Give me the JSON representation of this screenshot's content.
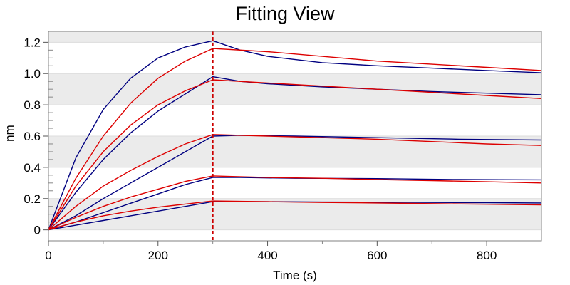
{
  "chart_data": {
    "type": "line",
    "title": "Fitting View",
    "xlabel": "Time (s)",
    "ylabel": "nm",
    "xlim": [
      0,
      900
    ],
    "ylim": [
      -0.07,
      1.27
    ],
    "xticks": [
      0,
      200,
      400,
      600,
      800
    ],
    "yticks": [
      0,
      0.2,
      0.4,
      0.6,
      0.8,
      1.0,
      1.2
    ],
    "ytick_labels": [
      "0",
      "0.2",
      "0.4",
      "0.6",
      "0.8",
      "1.0",
      "1.2"
    ],
    "grid": true,
    "legend": "none",
    "association_end_marker": {
      "x": 300,
      "color": "#cc0000",
      "style": "dashed"
    },
    "colors": {
      "measured": "#000080",
      "fitted": "#dd0000",
      "band": "#ebebeb"
    },
    "series": [
      {
        "kind": "measured",
        "points": [
          [
            0,
            0
          ],
          [
            50,
            0.46
          ],
          [
            100,
            0.77
          ],
          [
            150,
            0.97
          ],
          [
            200,
            1.1
          ],
          [
            250,
            1.17
          ],
          [
            300,
            1.21
          ],
          [
            350,
            1.15
          ],
          [
            400,
            1.11
          ],
          [
            500,
            1.07
          ],
          [
            600,
            1.05
          ],
          [
            700,
            1.035
          ],
          [
            800,
            1.02
          ],
          [
            900,
            1.005
          ]
        ]
      },
      {
        "kind": "fitted",
        "points": [
          [
            0,
            0
          ],
          [
            50,
            0.33
          ],
          [
            100,
            0.6
          ],
          [
            150,
            0.81
          ],
          [
            200,
            0.97
          ],
          [
            250,
            1.08
          ],
          [
            300,
            1.16
          ],
          [
            400,
            1.14
          ],
          [
            500,
            1.11
          ],
          [
            600,
            1.08
          ],
          [
            700,
            1.06
          ],
          [
            800,
            1.04
          ],
          [
            900,
            1.02
          ]
        ]
      },
      {
        "kind": "measured",
        "points": [
          [
            0,
            0
          ],
          [
            50,
            0.24
          ],
          [
            100,
            0.45
          ],
          [
            150,
            0.62
          ],
          [
            200,
            0.76
          ],
          [
            250,
            0.87
          ],
          [
            300,
            0.98
          ],
          [
            350,
            0.95
          ],
          [
            400,
            0.935
          ],
          [
            500,
            0.915
          ],
          [
            600,
            0.9
          ],
          [
            700,
            0.885
          ],
          [
            800,
            0.875
          ],
          [
            900,
            0.865
          ]
        ]
      },
      {
        "kind": "fitted",
        "points": [
          [
            0,
            0
          ],
          [
            50,
            0.28
          ],
          [
            100,
            0.5
          ],
          [
            150,
            0.67
          ],
          [
            200,
            0.8
          ],
          [
            250,
            0.89
          ],
          [
            300,
            0.96
          ],
          [
            400,
            0.94
          ],
          [
            500,
            0.92
          ],
          [
            600,
            0.9
          ],
          [
            700,
            0.88
          ],
          [
            800,
            0.86
          ],
          [
            900,
            0.84
          ]
        ]
      },
      {
        "kind": "measured",
        "points": [
          [
            0,
            0
          ],
          [
            50,
            0.09
          ],
          [
            100,
            0.2
          ],
          [
            150,
            0.3
          ],
          [
            200,
            0.4
          ],
          [
            250,
            0.5
          ],
          [
            300,
            0.6
          ],
          [
            350,
            0.605
          ],
          [
            450,
            0.6
          ],
          [
            600,
            0.59
          ],
          [
            750,
            0.58
          ],
          [
            900,
            0.575
          ]
        ]
      },
      {
        "kind": "fitted",
        "points": [
          [
            0,
            0
          ],
          [
            50,
            0.15
          ],
          [
            100,
            0.28
          ],
          [
            150,
            0.38
          ],
          [
            200,
            0.47
          ],
          [
            250,
            0.55
          ],
          [
            300,
            0.61
          ],
          [
            400,
            0.6
          ],
          [
            500,
            0.59
          ],
          [
            600,
            0.58
          ],
          [
            700,
            0.565
          ],
          [
            800,
            0.55
          ],
          [
            900,
            0.54
          ]
        ]
      },
      {
        "kind": "measured",
        "points": [
          [
            0,
            0
          ],
          [
            50,
            0.05
          ],
          [
            100,
            0.11
          ],
          [
            150,
            0.17
          ],
          [
            200,
            0.23
          ],
          [
            250,
            0.29
          ],
          [
            300,
            0.335
          ],
          [
            350,
            0.335
          ],
          [
            450,
            0.33
          ],
          [
            600,
            0.328
          ],
          [
            750,
            0.322
          ],
          [
            900,
            0.32
          ]
        ]
      },
      {
        "kind": "fitted",
        "points": [
          [
            0,
            0
          ],
          [
            50,
            0.08
          ],
          [
            100,
            0.15
          ],
          [
            150,
            0.21
          ],
          [
            200,
            0.26
          ],
          [
            250,
            0.31
          ],
          [
            300,
            0.345
          ],
          [
            400,
            0.335
          ],
          [
            500,
            0.33
          ],
          [
            600,
            0.322
          ],
          [
            700,
            0.315
          ],
          [
            800,
            0.308
          ],
          [
            900,
            0.3
          ]
        ]
      },
      {
        "kind": "measured",
        "points": [
          [
            0,
            0
          ],
          [
            50,
            0.03
          ],
          [
            100,
            0.06
          ],
          [
            150,
            0.09
          ],
          [
            200,
            0.12
          ],
          [
            250,
            0.15
          ],
          [
            300,
            0.18
          ],
          [
            400,
            0.18
          ],
          [
            500,
            0.178
          ],
          [
            600,
            0.177
          ],
          [
            700,
            0.175
          ],
          [
            800,
            0.174
          ],
          [
            900,
            0.172
          ]
        ]
      },
      {
        "kind": "fitted",
        "points": [
          [
            0,
            0
          ],
          [
            50,
            0.05
          ],
          [
            100,
            0.09
          ],
          [
            150,
            0.12
          ],
          [
            200,
            0.145
          ],
          [
            250,
            0.165
          ],
          [
            300,
            0.185
          ],
          [
            400,
            0.18
          ],
          [
            500,
            0.175
          ],
          [
            600,
            0.172
          ],
          [
            700,
            0.168
          ],
          [
            800,
            0.164
          ],
          [
            900,
            0.16
          ]
        ]
      }
    ]
  }
}
